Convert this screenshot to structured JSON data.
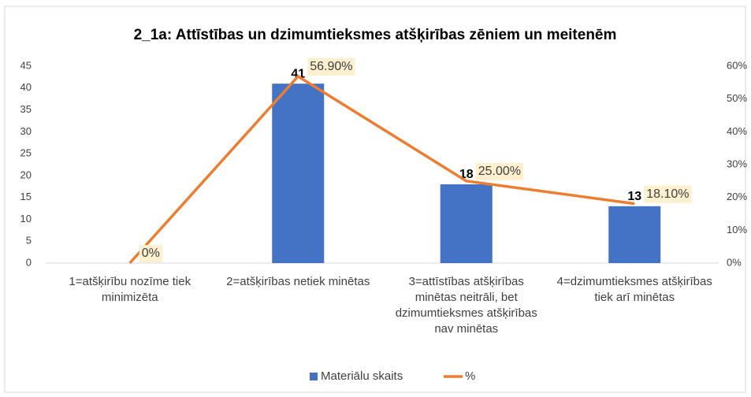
{
  "chart_data": {
    "type": "bar_line",
    "title": "2_1a: Attīstības un dzimumtieksmes atšķirības zēniem un meitenēm",
    "categories": [
      "1=atšķirību nozīme tiek minimizēta",
      "2=atšķirības netiek minētas",
      "3=attīstības atšķirības minētas neitrāli, bet dzimumtieksmes atšķirības nav minētas",
      "4=dzimumtieksmes atšķirības tiek arī minētas"
    ],
    "series": [
      {
        "name": "Materiālu skaits",
        "type": "bar",
        "color": "#4472c4",
        "values": [
          0,
          41,
          18,
          13
        ],
        "value_labels": [
          null,
          "41",
          "18",
          "13"
        ]
      },
      {
        "name": "%",
        "type": "line",
        "color": "#ed7d31",
        "axis": "y2",
        "values": [
          0,
          56.9,
          25,
          18.1
        ],
        "value_labels": [
          "0%",
          "56.90%",
          "25.00%",
          "18.10%"
        ]
      }
    ],
    "ylim": [
      0,
      45
    ],
    "yticks": [
      0,
      5,
      10,
      15,
      20,
      25,
      30,
      35,
      40,
      45
    ],
    "y2lim": [
      0,
      60
    ],
    "y2ticks": [
      {
        "value": 0,
        "label": "0%"
      },
      {
        "value": 10,
        "label": "10%"
      },
      {
        "value": 20,
        "label": "20%"
      },
      {
        "value": 30,
        "label": "30%"
      },
      {
        "value": 40,
        "label": "40%"
      },
      {
        "value": 50,
        "label": "50%"
      },
      {
        "value": 60,
        "label": "60%"
      }
    ],
    "grid": false,
    "legend": "bottom"
  }
}
